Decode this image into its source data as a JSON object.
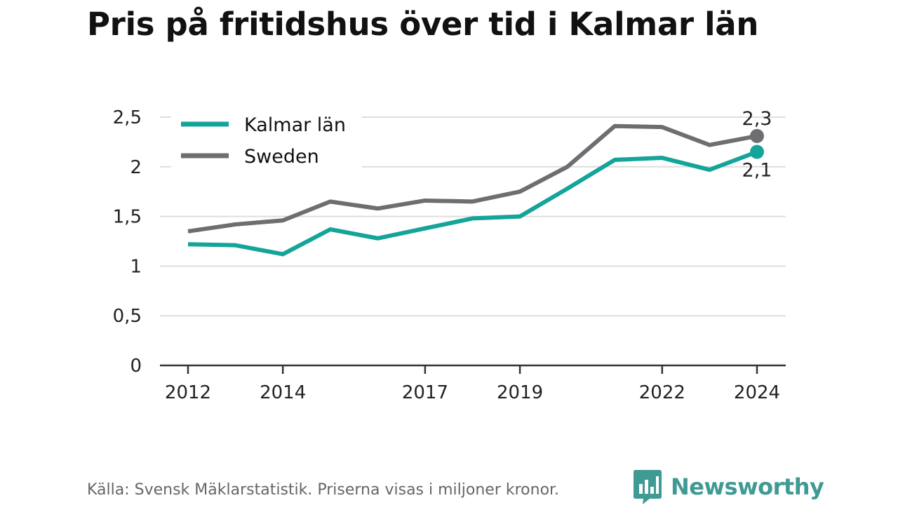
{
  "title": "Pris på fritidshus över tid i Kalmar län",
  "source": "Källa: Svensk Mäklarstatistik. Priserna visas i miljoner kronor.",
  "brand": {
    "name": "Newsworthy",
    "icon": "newsworthy-logo-icon",
    "color": "#3f9a93"
  },
  "chart_data": {
    "type": "line",
    "title": "Pris på fritidshus över tid i Kalmar län",
    "xlabel": "",
    "ylabel": "",
    "x": [
      2012,
      2013,
      2014,
      2015,
      2016,
      2017,
      2018,
      2019,
      2020,
      2021,
      2022,
      2023,
      2024
    ],
    "x_ticks": [
      2012,
      2014,
      2017,
      2019,
      2022,
      2024
    ],
    "x_tick_labels": [
      "2012",
      "2014",
      "2017",
      "2019",
      "2022",
      "2024"
    ],
    "ylim": [
      0,
      2.5
    ],
    "y_ticks": [
      0,
      0.5,
      1,
      1.5,
      2,
      2.5
    ],
    "y_tick_labels": [
      "0",
      "0,5",
      "1",
      "1,5",
      "2",
      "2,5"
    ],
    "grid": true,
    "legend_position": "top-left",
    "series": [
      {
        "name": "Kalmar län",
        "color": "#14a49a",
        "values": [
          1.22,
          1.21,
          1.12,
          1.37,
          1.28,
          1.38,
          1.48,
          1.5,
          1.78,
          2.07,
          2.09,
          1.97,
          2.15
        ],
        "end_label": "2,1"
      },
      {
        "name": "Sweden",
        "color": "#6e6d72",
        "values": [
          1.35,
          1.42,
          1.46,
          1.65,
          1.58,
          1.66,
          1.65,
          1.75,
          2.0,
          2.41,
          2.4,
          2.22,
          2.31
        ],
        "end_label": "2,3"
      }
    ]
  }
}
